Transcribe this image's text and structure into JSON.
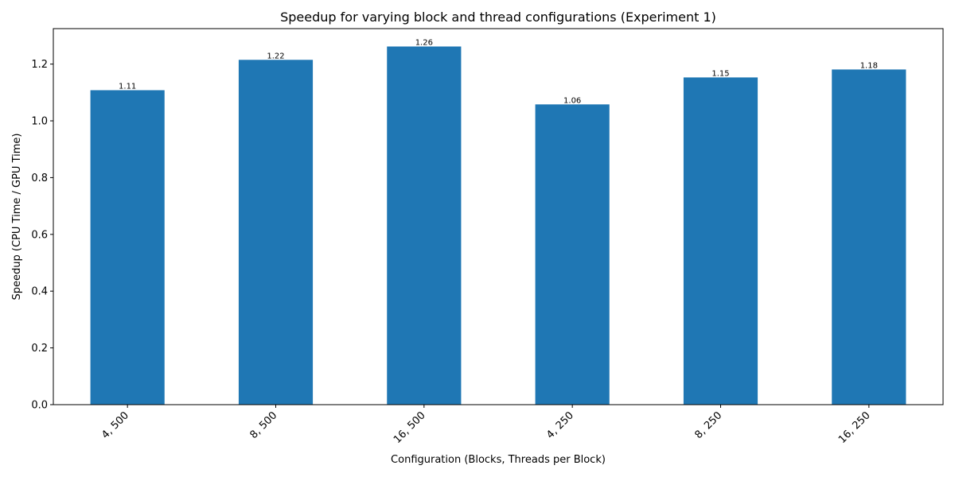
{
  "chart_data": {
    "type": "bar",
    "title": "Speedup for varying block and thread configurations (Experiment 1)",
    "xlabel": "Configuration (Blocks, Threads per Block)",
    "ylabel": "Speedup (CPU Time / GPU Time)",
    "categories": [
      "4, 500",
      "8, 500",
      "16, 500",
      "4, 250",
      "8, 250",
      "16, 250"
    ],
    "values": [
      1.108,
      1.215,
      1.262,
      1.058,
      1.153,
      1.181
    ],
    "data_labels": [
      "1.11",
      "1.22",
      "1.26",
      "1.06",
      "1.15",
      "1.18"
    ],
    "ylim": [
      0,
      1.325
    ],
    "yticks": [
      0.0,
      0.2,
      0.4,
      0.6,
      0.8,
      1.0,
      1.2
    ],
    "ytick_labels": [
      "0.0",
      "0.2",
      "0.4",
      "0.6",
      "0.8",
      "1.0",
      "1.2"
    ],
    "bar_color": "#1f77b4",
    "grid": false,
    "legend": false,
    "xtick_rotation": 45
  }
}
